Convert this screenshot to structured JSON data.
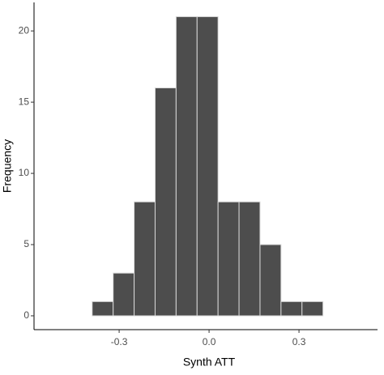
{
  "chart_data": {
    "type": "histogram",
    "x_label": "Synth ATT",
    "y_label": "Frequency",
    "bins": [
      -0.53,
      -0.46,
      -0.39,
      -0.32,
      -0.25,
      -0.18,
      -0.11,
      -0.04,
      0.03,
      0.1,
      0.17,
      0.24,
      0.31,
      0.38,
      0.45,
      0.52
    ],
    "counts": [
      0,
      0,
      1,
      3,
      8,
      16,
      21,
      21,
      8,
      8,
      5,
      1,
      1,
      0,
      0
    ],
    "color": "#4d4d4d",
    "edge_color": "#d9d9d9",
    "xlim": [
      -0.584,
      0.562
    ],
    "xticks": [
      -0.3,
      {
        "value": 0,
        "label": "0.0"
      },
      0.3
    ],
    "ylim": [
      -0.97,
      22
    ],
    "yticks": [
      0,
      5,
      10,
      15,
      20
    ]
  }
}
